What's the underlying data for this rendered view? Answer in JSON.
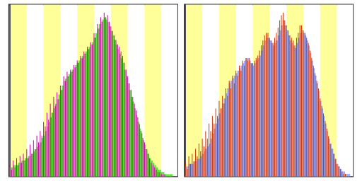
{
  "chart_data": [
    {
      "type": "bar",
      "x": [
        0,
        1,
        2,
        3,
        4,
        5,
        6,
        7,
        8,
        9,
        10,
        11,
        12,
        13,
        14,
        15,
        16,
        17,
        18,
        19,
        20,
        21,
        22,
        23,
        24,
        25,
        26,
        27,
        28,
        29,
        30,
        31,
        32,
        33,
        34,
        35,
        36,
        37,
        38,
        39,
        40,
        41,
        42,
        43,
        44,
        45,
        46,
        47,
        48,
        49,
        50,
        51,
        52,
        53,
        54,
        55,
        56,
        57,
        58,
        59,
        60,
        61,
        62,
        63,
        64,
        65,
        66,
        67,
        68,
        69,
        70,
        71,
        72,
        73,
        74,
        75,
        76,
        77,
        78,
        79,
        80,
        81,
        82,
        83,
        84,
        85,
        86,
        87,
        88,
        89,
        90,
        91,
        92,
        93,
        94,
        95,
        96,
        97,
        98,
        99
      ],
      "series": [
        {
          "color": "#44DD22",
          "values": [
            4,
            4,
            5,
            5,
            5,
            6,
            6,
            7,
            7,
            8,
            8,
            9,
            9,
            10,
            11,
            12,
            13,
            14,
            15,
            17,
            18,
            20,
            22,
            24,
            26,
            28,
            30,
            32,
            34,
            36,
            38,
            40,
            42,
            43,
            44,
            45,
            46,
            47,
            48,
            49,
            50,
            51,
            52,
            53,
            54,
            55,
            56,
            57,
            58,
            59,
            61,
            63,
            65,
            67,
            68,
            69,
            70,
            69,
            68,
            66,
            64,
            62,
            60,
            58,
            56,
            54,
            52,
            50,
            47,
            44,
            41,
            38,
            35,
            33,
            30,
            27,
            24,
            21,
            19,
            16,
            14,
            12,
            10,
            8,
            7,
            6,
            5,
            4,
            3,
            3,
            2,
            2,
            1,
            1,
            1,
            1,
            1,
            0,
            0,
            0
          ]
        },
        {
          "color": "#CC00AA",
          "values": [
            5,
            3,
            7,
            4,
            8,
            5,
            9,
            6,
            10,
            7,
            12,
            8,
            14,
            10,
            16,
            12,
            18,
            15,
            20,
            18,
            24,
            22,
            28,
            25,
            32,
            28,
            35,
            31,
            37,
            34,
            40,
            38,
            44,
            42,
            46,
            44,
            47,
            46,
            49,
            48,
            51,
            50,
            53,
            52,
            55,
            54,
            57,
            56,
            59,
            58,
            63,
            61,
            67,
            65,
            70,
            68,
            72,
            70,
            71,
            68,
            66,
            64,
            62,
            60,
            58,
            57,
            55,
            53,
            50,
            47,
            44,
            41,
            38,
            35,
            32,
            29,
            26,
            23,
            20,
            17,
            15,
            12,
            10,
            8,
            6,
            5,
            4,
            3,
            2,
            2,
            1,
            1,
            1,
            0,
            0,
            0,
            0,
            0,
            0,
            0
          ]
        }
      ],
      "bands": [
        {
          "from": 0,
          "to": 10,
          "color": "#FFFF99"
        },
        {
          "from": 10,
          "to": 20,
          "color": "#FFFFFF"
        },
        {
          "from": 20,
          "to": 30,
          "color": "#FFFF99"
        },
        {
          "from": 30,
          "to": 40,
          "color": "#FFFFFF"
        },
        {
          "from": 40,
          "to": 50,
          "color": "#FFFF99"
        },
        {
          "from": 50,
          "to": 60,
          "color": "#FFFFFF"
        },
        {
          "from": 60,
          "to": 70,
          "color": "#FFFF99"
        },
        {
          "from": 70,
          "to": 80,
          "color": "#FFFFFF"
        },
        {
          "from": 80,
          "to": 90,
          "color": "#FFFF99"
        },
        {
          "from": 90,
          "to": 100,
          "color": "#FFFFFF"
        }
      ],
      "xlim": [
        -0.5,
        99.5
      ],
      "ylim": [
        0,
        75.6
      ],
      "tick_labels": false,
      "grid": false
    },
    {
      "type": "bar",
      "x": [
        0,
        1,
        2,
        3,
        4,
        5,
        6,
        7,
        8,
        9,
        10,
        11,
        12,
        13,
        14,
        15,
        16,
        17,
        18,
        19,
        20,
        21,
        22,
        23,
        24,
        25,
        26,
        27,
        28,
        29,
        30,
        31,
        32,
        33,
        34,
        35,
        36,
        37,
        38,
        39,
        40,
        41,
        42,
        43,
        44,
        45,
        46,
        47,
        48,
        49,
        50,
        51,
        52,
        53,
        54,
        55,
        56,
        57,
        58,
        59,
        60,
        61,
        62,
        63,
        64,
        65,
        66,
        67,
        68,
        69,
        70,
        71,
        72,
        73,
        74,
        75,
        76,
        77,
        78,
        79,
        80,
        81,
        82,
        83,
        84,
        85,
        86,
        87,
        88,
        89,
        90,
        91,
        92,
        93,
        94,
        95,
        96,
        97,
        98,
        99
      ],
      "series": [
        {
          "color": "#8899FF",
          "values": [
            4,
            4,
            5,
            5,
            5,
            6,
            6,
            7,
            7,
            8,
            9,
            10,
            11,
            12,
            13,
            15,
            17,
            19,
            21,
            23,
            25,
            27,
            29,
            31,
            33,
            35,
            37,
            38,
            39,
            40,
            41,
            42,
            43,
            44,
            45,
            46,
            47,
            47,
            46,
            45,
            44,
            45,
            46,
            47,
            48,
            50,
            52,
            54,
            55,
            55,
            54,
            53,
            52,
            53,
            54,
            56,
            58,
            60,
            62,
            60,
            58,
            56,
            54,
            53,
            52,
            51,
            53,
            55,
            57,
            58,
            57,
            56,
            54,
            52,
            49,
            46,
            43,
            40,
            37,
            34,
            30,
            27,
            24,
            21,
            18,
            15,
            13,
            11,
            9,
            7,
            5,
            4,
            3,
            2,
            2,
            1,
            1,
            1,
            0,
            0
          ]
        },
        {
          "color": "#CC3300",
          "values": [
            5,
            3,
            8,
            5,
            9,
            6,
            11,
            8,
            13,
            10,
            15,
            12,
            18,
            15,
            21,
            18,
            24,
            21,
            27,
            24,
            30,
            27,
            32,
            29,
            35,
            32,
            38,
            35,
            40,
            37,
            42,
            40,
            44,
            42,
            46,
            44,
            47,
            46,
            47,
            45,
            45,
            46,
            47,
            48,
            50,
            52,
            54,
            56,
            57,
            57,
            55,
            54,
            53,
            55,
            57,
            59,
            62,
            64,
            65,
            62,
            60,
            58,
            56,
            55,
            54,
            52,
            55,
            57,
            60,
            60,
            58,
            57,
            55,
            53,
            50,
            47,
            44,
            41,
            38,
            35,
            31,
            28,
            25,
            22,
            19,
            16,
            13,
            11,
            9,
            7,
            5,
            4,
            3,
            2,
            1,
            1,
            0,
            0,
            0,
            0
          ]
        }
      ],
      "bands": [
        {
          "from": 0,
          "to": 10,
          "color": "#FFFF99"
        },
        {
          "from": 10,
          "to": 20,
          "color": "#FFFFFF"
        },
        {
          "from": 20,
          "to": 30,
          "color": "#FFFF99"
        },
        {
          "from": 30,
          "to": 40,
          "color": "#FFFFFF"
        },
        {
          "from": 40,
          "to": 50,
          "color": "#FFFF99"
        },
        {
          "from": 50,
          "to": 60,
          "color": "#FFFFFF"
        },
        {
          "from": 60,
          "to": 70,
          "color": "#FFFF99"
        },
        {
          "from": 70,
          "to": 80,
          "color": "#FFFFFF"
        },
        {
          "from": 80,
          "to": 90,
          "color": "#FFFF99"
        },
        {
          "from": 90,
          "to": 100,
          "color": "#FFFFFF"
        }
      ],
      "xlim": [
        -0.5,
        99.5
      ],
      "ylim": [
        0,
        68.25
      ],
      "tick_labels": false,
      "grid": false
    }
  ]
}
